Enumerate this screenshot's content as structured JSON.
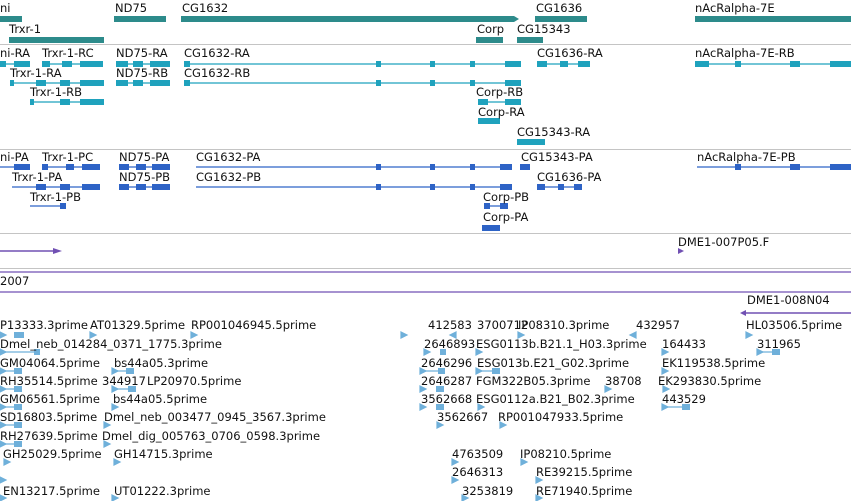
{
  "colors": {
    "gene": "#2d8b8b",
    "mrna": "#1fa2bd",
    "protein": "#2e63c6",
    "contig": "#7150b3",
    "est": "#6fb0da",
    "divider": "#c4c4c4"
  },
  "genes_track": {
    "labels": [
      "ni",
      "Trxr-1",
      "ND75",
      "CG1632",
      "Corp",
      "CG15343",
      "CG1636",
      "nAcRalpha-7E"
    ]
  },
  "transcripts_track": {
    "labels": [
      "ni-RA",
      "Trxr-1-RC",
      "ND75-RA",
      "CG1632-RA",
      "CG1636-RA",
      "nAcRalpha-7E-RB",
      "Trxr-1-RA",
      "ND75-RB",
      "CG1632-RB",
      "Trxr-1-RB",
      "Corp-RB",
      "Corp-RA",
      "CG15343-RA"
    ]
  },
  "proteins_track": {
    "labels": [
      "ni-PA",
      "Trxr-1-PC",
      "ND75-PA",
      "CG1632-PA",
      "CG15343-PA",
      "nAcRalpha-7E-PB",
      "Trxr-1-PA",
      "ND75-PB",
      "CG1632-PB",
      "CG1636-PA",
      "Trxr-1-PB",
      "Corp-PB",
      "Corp-PA"
    ]
  },
  "clone_track": {
    "labels": [
      "DME1-007P05.F"
    ]
  },
  "assembly_track": {
    "label": "2007"
  },
  "contig_track": {
    "label": "DME1-008N04"
  },
  "est_track": {
    "labels": [
      "P13333.3prime",
      "AT01329.5prime",
      "RP001046945.5prime",
      "412583",
      "3700712",
      "IP08310.3prime",
      "432957",
      "HL03506.5prime",
      "Dmel_neb_014284_0371_1775.3prime",
      "2646893",
      "ESG0113b.B21.1_H03.3prime",
      "164433",
      "311965",
      "GM04064.5prime",
      "bs44a05.3prime",
      "2646296",
      "ESG013b.E21_G02.3prime",
      "EK119538.5prime",
      "RH35514.5prime",
      "344917",
      "LP20970.5prime",
      "2646287",
      "FGM322B05.3prime",
      "38708",
      "EK293830.5prime",
      "GM06561.5prime",
      "bs44a05.5prime",
      "3562668",
      "ESG0112a.B21_B02.3prime",
      "443529",
      "SD16803.5prime",
      "Dmel_neb_003477_0945_3567.3prime",
      "3562667",
      "RP001047933.5prime",
      "RH27639.5prime",
      "Dmel_dig_005763_0706_0598.3prime",
      "GH25029.5prime",
      "GH14715.3prime",
      "4763509",
      "IP08210.5prime",
      "2646313",
      "RE39215.5prime",
      "EN13217.5prime",
      "UT01222.3prime",
      "3253819",
      "RE71940.5prime"
    ]
  }
}
